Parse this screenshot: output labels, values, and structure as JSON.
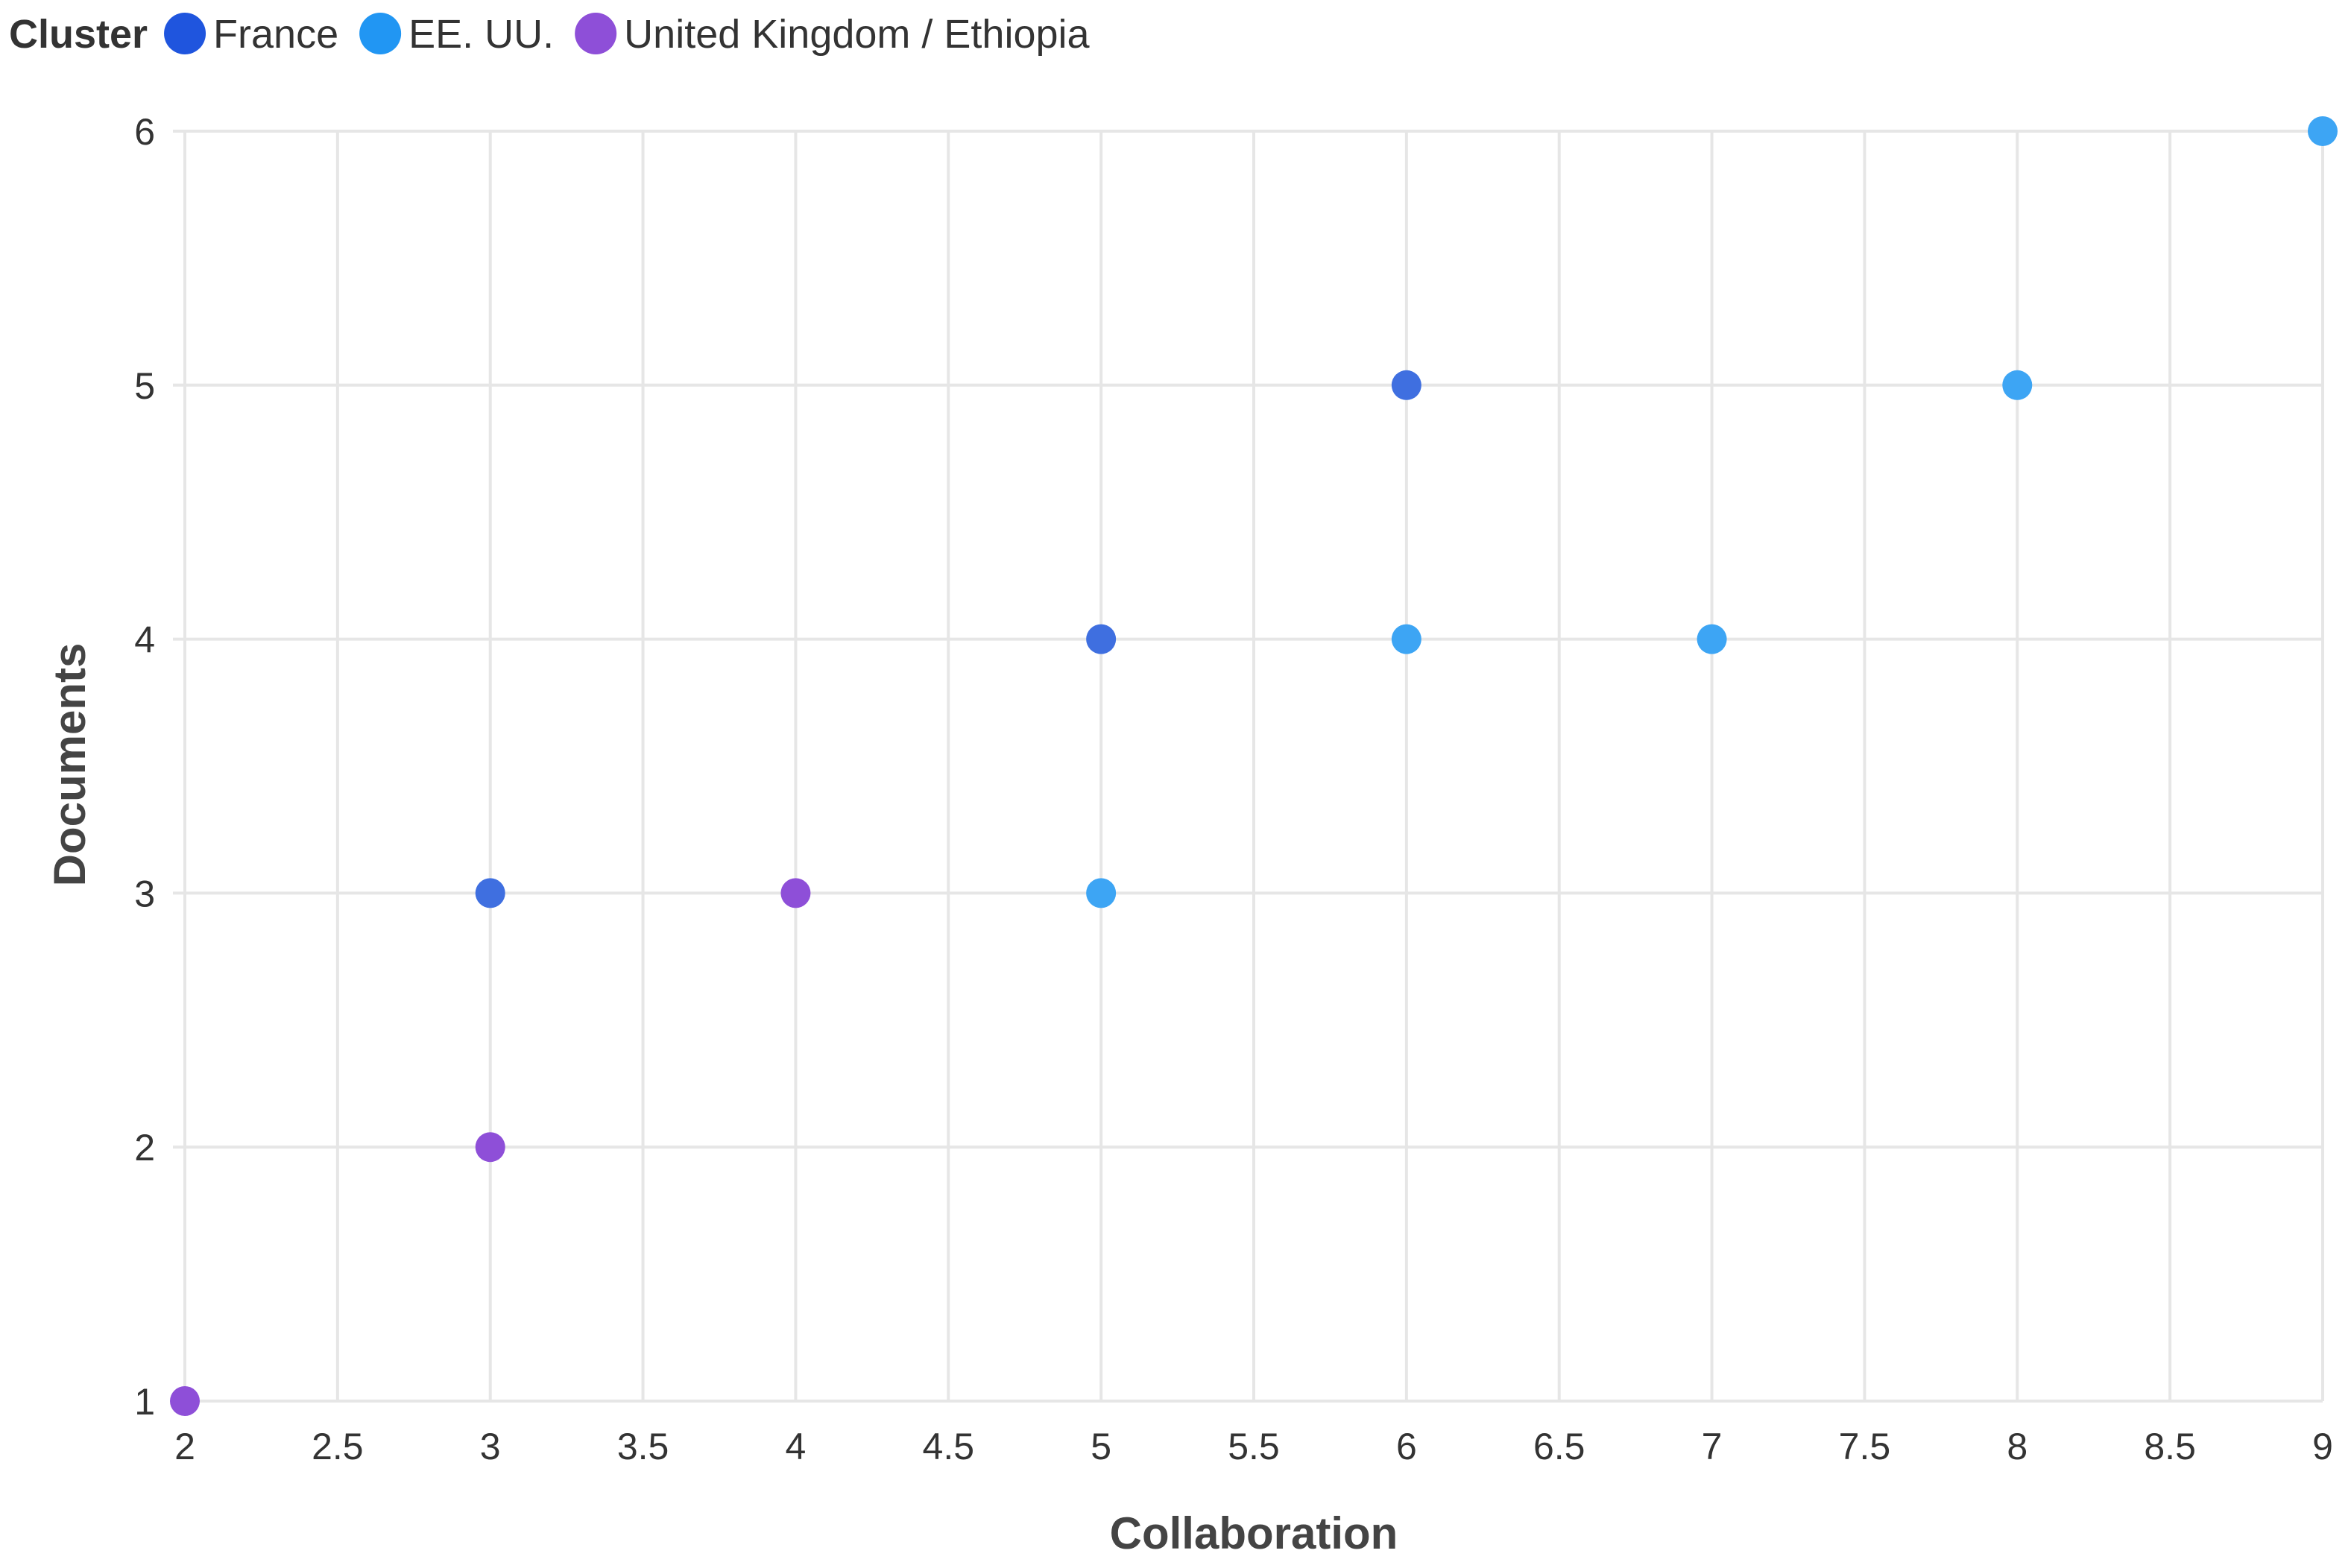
{
  "chart_data": {
    "type": "scatter",
    "xlabel": "Collaboration",
    "ylabel": "Documents",
    "xlim": [
      2,
      9
    ],
    "ylim": [
      1,
      6
    ],
    "x_ticks": [
      "2",
      "2.5",
      "3",
      "3.5",
      "4",
      "4.5",
      "5",
      "5.5",
      "6",
      "6.5",
      "7",
      "7.5",
      "8",
      "8.5",
      "9"
    ],
    "y_ticks": [
      "1",
      "2",
      "3",
      "4",
      "5",
      "6"
    ],
    "grid": true,
    "legend": {
      "title": "Cluster",
      "position": "top-left"
    },
    "series": [
      {
        "name": "France",
        "color": "#3f6fe0",
        "legend_color": "#1f55de",
        "points": [
          {
            "x": 3,
            "y": 3
          },
          {
            "x": 5,
            "y": 4
          },
          {
            "x": 6,
            "y": 5
          }
        ]
      },
      {
        "name": "EE. UU.",
        "color": "#3da5f4",
        "legend_color": "#2196f3",
        "points": [
          {
            "x": 5,
            "y": 3
          },
          {
            "x": 6,
            "y": 4
          },
          {
            "x": 7,
            "y": 4
          },
          {
            "x": 8,
            "y": 5
          },
          {
            "x": 9,
            "y": 6
          }
        ]
      },
      {
        "name": "United Kingdom / Ethiopia",
        "color": "#8e4fd8",
        "legend_color": "#8e4fd8",
        "points": [
          {
            "x": 2,
            "y": 1
          },
          {
            "x": 3,
            "y": 2
          },
          {
            "x": 4,
            "y": 3
          }
        ]
      }
    ]
  }
}
